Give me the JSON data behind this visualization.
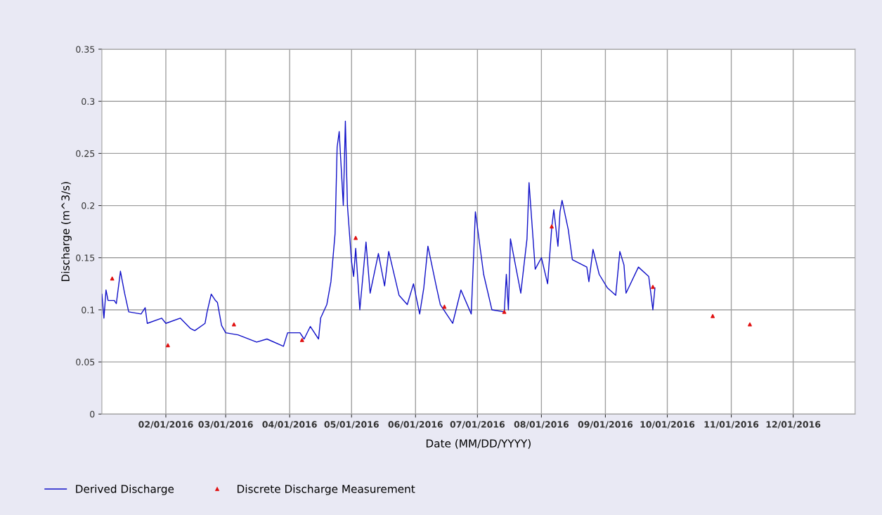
{
  "chart_data": {
    "type": "line",
    "xlabel": "Date (MM/DD/YYYY)",
    "ylabel": "Discharge (m^3/s)",
    "xlim": [
      "2016-01-01",
      "2016-12-31"
    ],
    "xticks": [
      {
        "value": "2016-02-01",
        "label": "02/01/2016"
      },
      {
        "value": "2016-03-01",
        "label": "03/01/2016"
      },
      {
        "value": "2016-04-01",
        "label": "04/01/2016"
      },
      {
        "value": "2016-05-01",
        "label": "05/01/2016"
      },
      {
        "value": "2016-06-01",
        "label": "06/01/2016"
      },
      {
        "value": "2016-07-01",
        "label": "07/01/2016"
      },
      {
        "value": "2016-08-01",
        "label": "08/01/2016"
      },
      {
        "value": "2016-09-01",
        "label": "09/01/2016"
      },
      {
        "value": "2016-10-01",
        "label": "10/01/2016"
      },
      {
        "value": "2016-11-01",
        "label": "11/01/2016"
      },
      {
        "value": "2016-12-01",
        "label": "12/01/2016"
      }
    ],
    "ylim": [
      0,
      0.35
    ],
    "yticks": [
      0,
      0.05,
      0.1,
      0.15,
      0.2,
      0.25,
      0.3,
      0.35
    ],
    "grid": true,
    "legend": "bottom left",
    "series": [
      {
        "name": "Derived Discharge",
        "color": "#1010c8",
        "marker": "none",
        "line_style": "solid",
        "x": [
          "2016-01-01",
          "2016-01-02",
          "2016-01-03",
          "2016-01-04",
          "2016-01-07",
          "2016-01-08",
          "2016-01-10",
          "2016-01-12",
          "2016-01-14",
          "2016-01-20",
          "2016-01-22",
          "2016-01-23",
          "2016-01-30",
          "2016-02-01",
          "2016-02-08",
          "2016-02-13",
          "2016-02-15",
          "2016-02-20",
          "2016-02-21",
          "2016-02-23",
          "2016-02-25",
          "2016-02-26",
          "2016-02-28",
          "2016-03-01",
          "2016-03-07",
          "2016-03-16",
          "2016-03-21",
          "2016-03-29",
          "2016-03-31",
          "2016-04-06",
          "2016-04-08",
          "2016-04-11",
          "2016-04-15",
          "2016-04-16",
          "2016-04-19",
          "2016-04-21",
          "2016-04-23",
          "2016-04-24",
          "2016-04-25",
          "2016-04-27",
          "2016-04-28",
          "2016-04-29",
          "2016-05-01",
          "2016-05-02",
          "2016-05-03",
          "2016-05-05",
          "2016-05-08",
          "2016-05-10",
          "2016-05-14",
          "2016-05-17",
          "2016-05-19",
          "2016-05-24",
          "2016-05-28",
          "2016-05-31",
          "2016-06-03",
          "2016-06-05",
          "2016-06-07",
          "2016-06-11",
          "2016-06-13",
          "2016-06-19",
          "2016-06-23",
          "2016-06-28",
          "2016-06-30",
          "2016-07-04",
          "2016-07-08",
          "2016-07-14",
          "2016-07-15",
          "2016-07-16",
          "2016-07-17",
          "2016-07-22",
          "2016-07-25",
          "2016-07-26",
          "2016-07-29",
          "2016-08-01",
          "2016-08-04",
          "2016-08-06",
          "2016-08-07",
          "2016-08-09",
          "2016-08-10",
          "2016-08-11",
          "2016-08-14",
          "2016-08-16",
          "2016-08-23",
          "2016-08-24",
          "2016-08-26",
          "2016-08-29",
          "2016-09-02",
          "2016-09-06",
          "2016-09-08",
          "2016-09-10",
          "2016-09-11",
          "2016-09-17",
          "2016-09-22",
          "2016-09-24",
          "2016-09-25"
        ],
        "values": [
          0.115,
          0.092,
          0.119,
          0.109,
          0.109,
          0.106,
          0.137,
          0.116,
          0.098,
          0.096,
          0.102,
          0.087,
          0.092,
          0.087,
          0.092,
          0.082,
          0.08,
          0.087,
          0.098,
          0.115,
          0.109,
          0.107,
          0.085,
          0.078,
          0.076,
          0.069,
          0.072,
          0.065,
          0.078,
          0.078,
          0.072,
          0.084,
          0.072,
          0.092,
          0.105,
          0.127,
          0.173,
          0.256,
          0.271,
          0.2,
          0.281,
          0.2,
          0.146,
          0.132,
          0.159,
          0.1,
          0.165,
          0.116,
          0.154,
          0.123,
          0.156,
          0.114,
          0.105,
          0.125,
          0.096,
          0.121,
          0.161,
          0.123,
          0.105,
          0.087,
          0.119,
          0.096,
          0.194,
          0.134,
          0.1,
          0.098,
          0.134,
          0.1,
          0.168,
          0.116,
          0.168,
          0.222,
          0.139,
          0.15,
          0.125,
          0.179,
          0.196,
          0.161,
          0.194,
          0.205,
          0.177,
          0.148,
          0.141,
          0.127,
          0.158,
          0.134,
          0.121,
          0.114,
          0.156,
          0.143,
          0.116,
          0.141,
          0.132,
          0.1,
          0.121
        ]
      },
      {
        "name": "Discrete Discharge Measurement",
        "type": "scatter",
        "color": "#e01010",
        "marker": "triangle",
        "x": [
          "2016-01-06",
          "2016-02-02",
          "2016-03-05",
          "2016-04-07",
          "2016-05-03",
          "2016-06-15",
          "2016-07-14",
          "2016-08-06",
          "2016-09-24",
          "2016-10-23",
          "2016-11-10"
        ],
        "values": [
          0.13,
          0.066,
          0.086,
          0.071,
          0.169,
          0.103,
          0.098,
          0.18,
          0.122,
          0.094,
          0.086
        ]
      }
    ]
  }
}
